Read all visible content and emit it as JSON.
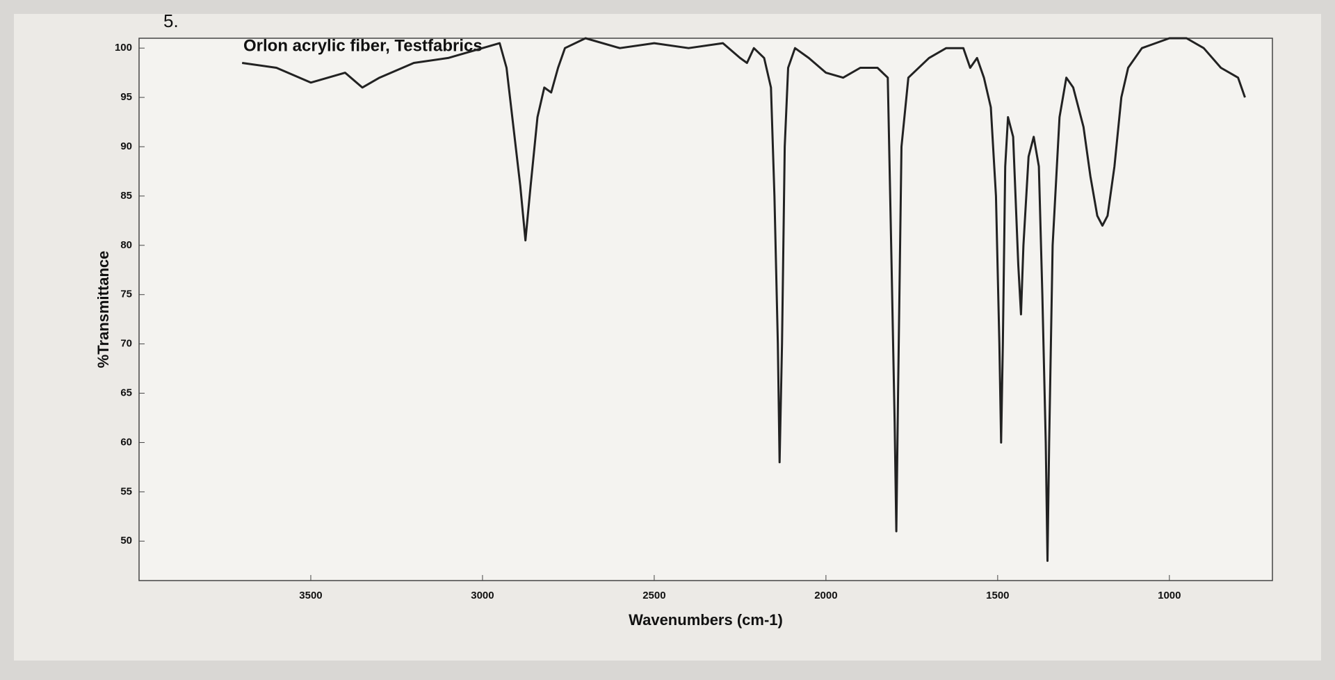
{
  "chart_data": {
    "type": "line",
    "annotation": "5.",
    "title": "Orlon acrylic fiber, Testfabrics",
    "x_label": "Wavenumbers (cm-1)",
    "y_label": "%Transmittance",
    "color": "#222222",
    "x": [
      3700,
      3600,
      3500,
      3450,
      3400,
      3350,
      3300,
      3200,
      3100,
      3000,
      2950,
      2930,
      2910,
      2890,
      2875,
      2860,
      2840,
      2820,
      2800,
      2780,
      2760,
      2700,
      2600,
      2500,
      2400,
      2300,
      2250,
      2230,
      2210,
      2180,
      2160,
      2150,
      2140,
      2135,
      2128,
      2120,
      2110,
      2090,
      2050,
      2000,
      1950,
      1900,
      1850,
      1820,
      1810,
      1800,
      1795,
      1790,
      1780,
      1760,
      1700,
      1650,
      1600,
      1580,
      1560,
      1540,
      1520,
      1505,
      1495,
      1490,
      1485,
      1478,
      1470,
      1455,
      1440,
      1432,
      1425,
      1410,
      1395,
      1380,
      1370,
      1360,
      1355,
      1350,
      1340,
      1320,
      1300,
      1280,
      1250,
      1230,
      1210,
      1195,
      1180,
      1160,
      1140,
      1120,
      1080,
      1000,
      950,
      900,
      850,
      800,
      780
    ],
    "values": [
      98.5,
      98,
      96.5,
      97,
      97.5,
      96,
      97,
      98.5,
      99,
      100,
      100.5,
      98,
      92,
      86,
      80.5,
      86,
      93,
      96,
      95.5,
      98,
      100,
      101,
      100,
      100.5,
      100,
      100.5,
      99,
      98.5,
      100,
      99,
      96,
      85,
      70,
      58,
      70,
      90,
      98,
      100,
      99,
      97.5,
      97,
      98,
      98,
      97,
      80,
      62,
      51,
      65,
      90,
      97,
      99,
      100,
      100,
      98,
      99,
      97,
      94,
      85,
      70,
      60,
      70,
      88,
      93,
      91,
      78,
      73,
      80,
      89,
      91,
      88,
      75,
      60,
      48,
      60,
      80,
      93,
      97,
      96,
      92,
      87,
      83,
      82,
      83,
      88,
      95,
      98,
      100,
      101,
      101,
      100,
      98,
      97,
      95
    ],
    "xlim": [
      4000,
      700
    ],
    "ylim": [
      46,
      101
    ],
    "xticks": [
      3500,
      3000,
      2500,
      2000,
      1500,
      1000
    ],
    "yticks": [
      50,
      55,
      60,
      65,
      70,
      75,
      80,
      85,
      90,
      95,
      100
    ]
  }
}
